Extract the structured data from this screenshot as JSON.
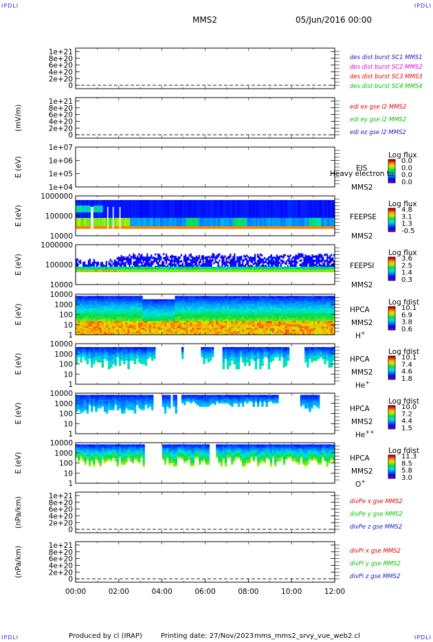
{
  "corner_labels": {
    "tl": "IPDLI",
    "tr": "IPDLI",
    "bl": "IPDLI",
    "br": "IPDLI"
  },
  "header": {
    "spacecraft": "MMS2",
    "datetime": "05/Jun/2016 00:00"
  },
  "footer": {
    "produced_by": "Produced by cl (IRAP)",
    "printing_date": "Printing date: 27/Nov/2023",
    "script_name": "mms_mms2_srvy_vue_web2.cl"
  },
  "colors": {
    "blue": "#1515c8",
    "magenta": "#e000e0",
    "red": "#e00000",
    "green": "#00c000"
  },
  "chart_data": [
    {
      "type": "line",
      "ylabel": "",
      "yscale": "linear",
      "ylim": [
        -1e+20,
        1.1e+21
      ],
      "ticks": [
        "1e+21",
        "8e+20",
        "6e+20",
        "4e+20",
        "2e+20",
        "0"
      ],
      "legend": [
        {
          "text": "des dist burst SC1 MMS1",
          "color": "blue"
        },
        {
          "text": "des dist burst SC2 MMS2",
          "color": "magenta"
        },
        {
          "text": "des dist burst SC3 MMS3",
          "color": "red"
        },
        {
          "text": "des dist burst SC4 MMS4",
          "color": "green"
        }
      ]
    },
    {
      "type": "line",
      "ylabel": "(mV/m)",
      "yscale": "linear",
      "ylim": [
        -1e+20,
        1.1e+21
      ],
      "ticks": [
        "1e+21",
        "8e+20",
        "6e+20",
        "4e+20",
        "2e+20",
        "0"
      ],
      "legend": [
        {
          "text": "edi ex gse l2 MMS2",
          "color": "red"
        },
        {
          "text": "edi ey gse l2 MMS2",
          "color": "green"
        },
        {
          "text": "edi ez gse l2 MMS2",
          "color": "blue"
        }
      ]
    },
    {
      "type": "heatmap",
      "ylabel": "E (eV)",
      "yscale": "log",
      "ticks": [
        "1e+07",
        "1e+06",
        "1e+05",
        "1e+04"
      ],
      "instrument": "EIS",
      "spacecraft": "MMS2",
      "cbar_title": "Log flux",
      "cbar_ticks": [
        "0.0",
        "0.0",
        "0.0",
        "0.0"
      ],
      "overlay_text": "Heavy electron to"
    },
    {
      "type": "heatmap",
      "ylabel": "E (eV)",
      "yscale": "log",
      "ticks": [
        "1000000",
        "100000",
        "10000"
      ],
      "instrument": "FEEPSE",
      "spacecraft": "MMS2",
      "cbar_title": "Log flux",
      "cbar_ticks": [
        "4.8",
        "3.1",
        "1.3",
        "-0.5"
      ]
    },
    {
      "type": "heatmap",
      "ylabel": "E (eV)",
      "yscale": "log",
      "ticks": [
        "1000000",
        "100000",
        "10000"
      ],
      "instrument": "FEEPSI",
      "spacecraft": "MMS2",
      "cbar_title": "Log flux",
      "cbar_ticks": [
        "3.6",
        "2.5",
        "1.4",
        "0.3"
      ]
    },
    {
      "type": "heatmap",
      "ylabel": "E (eV)",
      "yscale": "log",
      "ticks": [
        "10000",
        "1000",
        "100",
        "10",
        "1"
      ],
      "instrument": "HPCA",
      "spacecraft": "MMS2",
      "species": "H+",
      "cbar_title": "Log fdist",
      "cbar_ticks": [
        "10.1",
        "6.9",
        "3.8",
        "0.6"
      ]
    },
    {
      "type": "heatmap",
      "ylabel": "E (eV)",
      "yscale": "log",
      "ticks": [
        "10000",
        "1000",
        "100",
        "10",
        "1"
      ],
      "instrument": "HPCA",
      "spacecraft": "MMS2",
      "species": "He+",
      "cbar_title": "Log fdist",
      "cbar_ticks": [
        "10.1",
        "7.4",
        "4.6",
        "1.8"
      ]
    },
    {
      "type": "heatmap",
      "ylabel": "E (eV)",
      "yscale": "log",
      "ticks": [
        "10000",
        "1000",
        "100",
        "10",
        "1"
      ],
      "instrument": "HPCA",
      "spacecraft": "MMS2",
      "species": "He++",
      "cbar_title": "Log fdist",
      "cbar_ticks": [
        "10.0",
        "7.2",
        "4.4",
        "1.5"
      ]
    },
    {
      "type": "heatmap",
      "ylabel": "E (eV)",
      "yscale": "log",
      "ticks": [
        "10000",
        "1000",
        "100",
        "10",
        "1"
      ],
      "instrument": "HPCA",
      "spacecraft": "MMS2",
      "species": "O+",
      "cbar_title": "Log fdist",
      "cbar_ticks": [
        "11.3",
        "8.5",
        "5.8",
        "3.0"
      ]
    },
    {
      "type": "line",
      "ylabel": "(nPa/km)",
      "yscale": "linear",
      "ylim": [
        -1e+20,
        1.1e+21
      ],
      "ticks": [
        "1e+21",
        "8e+20",
        "6e+20",
        "4e+20",
        "2e+20",
        "0"
      ],
      "legend": [
        {
          "text": "divPe x gse MMS2",
          "color": "red"
        },
        {
          "text": "divPe y gse MMS2",
          "color": "green"
        },
        {
          "text": "divPe z gse MMS2",
          "color": "blue"
        }
      ]
    },
    {
      "type": "line",
      "ylabel": "(nPa/km)",
      "yscale": "linear",
      "ylim": [
        -1e+20,
        1.1e+21
      ],
      "ticks": [
        "1e+21",
        "8e+20",
        "6e+20",
        "4e+20",
        "2e+20",
        "0"
      ],
      "legend": [
        {
          "text": "divPi x gse MMS2",
          "color": "red"
        },
        {
          "text": "divPi y gse MMS2",
          "color": "green"
        },
        {
          "text": "divPi z gse MMS2",
          "color": "blue"
        }
      ]
    }
  ],
  "xaxis": {
    "tick_labels": [
      "00:00",
      "02:00",
      "04:00",
      "06:00",
      "08:00",
      "10:00",
      "12:00"
    ]
  }
}
